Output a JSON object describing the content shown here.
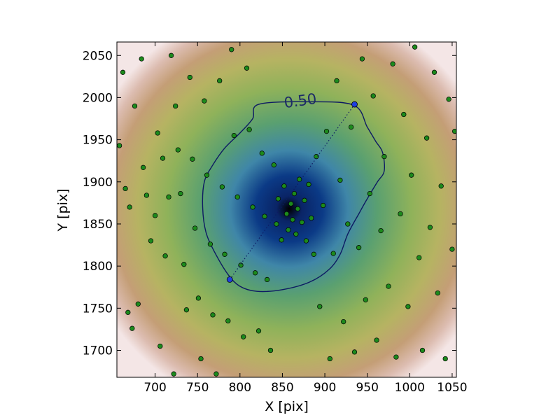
{
  "chart_data": {
    "type": "scatter",
    "title": "",
    "xlabel": "X [pix]",
    "ylabel": "Y [pix]",
    "xlim": [
      655,
      1055
    ],
    "ylim": [
      1668,
      2066
    ],
    "xticks": [
      700,
      750,
      800,
      850,
      900,
      950,
      1000,
      1050
    ],
    "yticks": [
      1700,
      1750,
      1800,
      1850,
      1900,
      1950,
      2000,
      2050
    ],
    "grid": false,
    "density": {
      "center": [
        858,
        1868
      ],
      "colormap": "gist_earth",
      "colors": {
        "core": "#000000",
        "inner": "#0b2f7e",
        "mid_blue": "#3f86a8",
        "green": "#5aa070",
        "mid_green": "#8fb25a",
        "olive": "#b6b362",
        "tan": "#c49e76",
        "pink": "#dcbcb0",
        "edge": "#f4e6e6"
      }
    },
    "contour": {
      "label": "0.50",
      "color": "#0d1a63",
      "points": [
        [
          822,
          1992
        ],
        [
          880,
          1995
        ],
        [
          934,
          1991
        ],
        [
          950,
          1965
        ],
        [
          960,
          1948
        ],
        [
          968,
          1935
        ],
        [
          970,
          1913
        ],
        [
          962,
          1900
        ],
        [
          950,
          1880
        ],
        [
          940,
          1862
        ],
        [
          927,
          1838
        ],
        [
          918,
          1814
        ],
        [
          905,
          1796
        ],
        [
          882,
          1781
        ],
        [
          850,
          1772
        ],
        [
          820,
          1770
        ],
        [
          800,
          1776
        ],
        [
          786,
          1790
        ],
        [
          771,
          1815
        ],
        [
          760,
          1840
        ],
        [
          756,
          1870
        ],
        [
          758,
          1900
        ],
        [
          768,
          1920
        ],
        [
          782,
          1940
        ],
        [
          800,
          1958
        ],
        [
          815,
          1975
        ]
      ]
    },
    "markers": {
      "color": "#1f3fe0",
      "points": [
        [
          788,
          1784
        ],
        [
          935,
          1992
        ]
      ],
      "connector": "dotted"
    },
    "scatter_color": "#1c8a1c",
    "stars": [
      [
        658,
        1943
      ],
      [
        662,
        2030
      ],
      [
        665,
        1892
      ],
      [
        668,
        1745
      ],
      [
        670,
        1870
      ],
      [
        673,
        1726
      ],
      [
        676,
        1990
      ],
      [
        680,
        1755
      ],
      [
        684,
        2046
      ],
      [
        686,
        1917
      ],
      [
        690,
        1884
      ],
      [
        695,
        1830
      ],
      [
        700,
        1860
      ],
      [
        703,
        1958
      ],
      [
        706,
        1705
      ],
      [
        709,
        1928
      ],
      [
        712,
        1812
      ],
      [
        716,
        1882
      ],
      [
        719,
        2050
      ],
      [
        722,
        1672
      ],
      [
        724,
        1990
      ],
      [
        727,
        1938
      ],
      [
        730,
        1886
      ],
      [
        734,
        1802
      ],
      [
        737,
        1748
      ],
      [
        741,
        2024
      ],
      [
        744,
        1927
      ],
      [
        747,
        1845
      ],
      [
        751,
        1762
      ],
      [
        754,
        1690
      ],
      [
        758,
        1996
      ],
      [
        761,
        1908
      ],
      [
        765,
        1826
      ],
      [
        768,
        1742
      ],
      [
        772,
        1672
      ],
      [
        776,
        2020
      ],
      [
        779,
        1894
      ],
      [
        782,
        1814
      ],
      [
        786,
        1735
      ],
      [
        790,
        2057
      ],
      [
        793,
        1955
      ],
      [
        797,
        1882
      ],
      [
        801,
        1801
      ],
      [
        804,
        1716
      ],
      [
        808,
        2035
      ],
      [
        811,
        1962
      ],
      [
        815,
        1870
      ],
      [
        818,
        1792
      ],
      [
        822,
        1723
      ],
      [
        826,
        1934
      ],
      [
        829,
        1859
      ],
      [
        832,
        1784
      ],
      [
        836,
        1700
      ],
      [
        840,
        1920
      ],
      [
        843,
        1850
      ],
      [
        845,
        1880
      ],
      [
        849,
        1831
      ],
      [
        852,
        1895
      ],
      [
        855,
        1862
      ],
      [
        857,
        1843
      ],
      [
        860,
        1874
      ],
      [
        862,
        1855
      ],
      [
        864,
        1886
      ],
      [
        866,
        1838
      ],
      [
        868,
        1868
      ],
      [
        870,
        1903
      ],
      [
        873,
        1852
      ],
      [
        876,
        1878
      ],
      [
        878,
        1830
      ],
      [
        881,
        1897
      ],
      [
        884,
        1857
      ],
      [
        887,
        1814
      ],
      [
        890,
        1930
      ],
      [
        894,
        1752
      ],
      [
        898,
        1872
      ],
      [
        902,
        1960
      ],
      [
        906,
        1690
      ],
      [
        910,
        1815
      ],
      [
        914,
        2020
      ],
      [
        918,
        1902
      ],
      [
        922,
        1734
      ],
      [
        927,
        1850
      ],
      [
        931,
        1965
      ],
      [
        935,
        1698
      ],
      [
        940,
        1822
      ],
      [
        944,
        2046
      ],
      [
        948,
        1760
      ],
      [
        953,
        1886
      ],
      [
        957,
        2002
      ],
      [
        961,
        1712
      ],
      [
        966,
        1842
      ],
      [
        970,
        1930
      ],
      [
        975,
        1776
      ],
      [
        980,
        2040
      ],
      [
        984,
        1692
      ],
      [
        989,
        1862
      ],
      [
        993,
        1980
      ],
      [
        998,
        1752
      ],
      [
        1002,
        1908
      ],
      [
        1006,
        2060
      ],
      [
        1011,
        1810
      ],
      [
        1015,
        1700
      ],
      [
        1020,
        1952
      ],
      [
        1024,
        1846
      ],
      [
        1029,
        2030
      ],
      [
        1033,
        1768
      ],
      [
        1037,
        1895
      ],
      [
        1042,
        1690
      ],
      [
        1046,
        1998
      ],
      [
        1050,
        1820
      ],
      [
        1053,
        1960
      ]
    ]
  }
}
